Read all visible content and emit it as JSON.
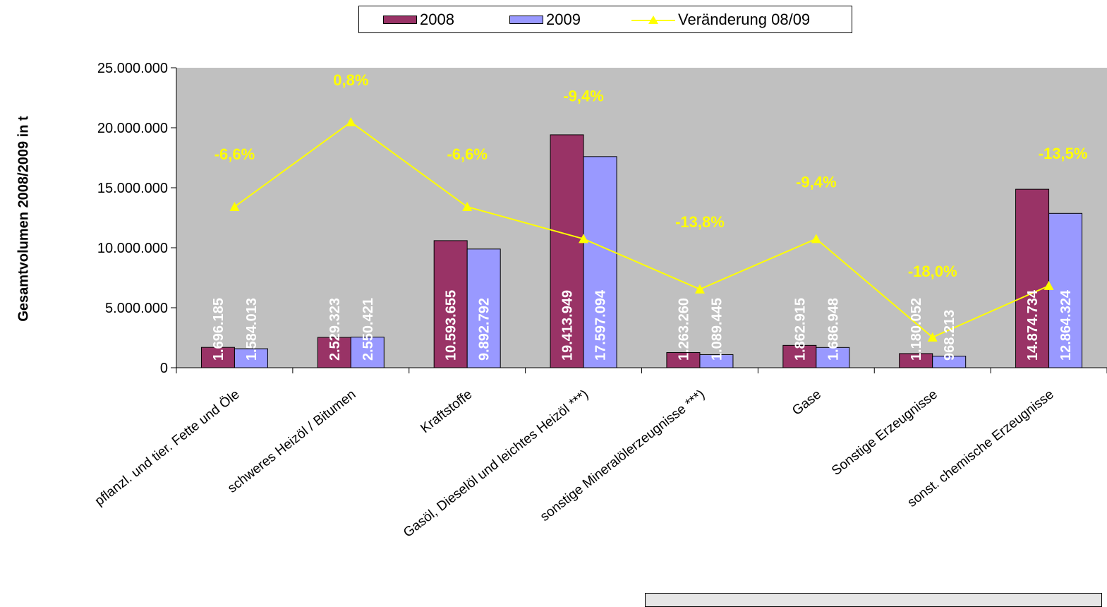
{
  "legend": {
    "series_2008": "2008",
    "series_2009": "2009",
    "change": "Veränderung 08/09"
  },
  "colors": {
    "bar_2008": "#993366",
    "bar_2009": "#9999ff",
    "change_line": "#ffff00",
    "plot_area": "#c0c0c0",
    "value_label": "#ffffff"
  },
  "chart_data": {
    "type": "bar",
    "title": "",
    "xlabel": "",
    "ylabel": "Gesamtvolumen 2008/2009 in t",
    "ylim": [
      0,
      25000000
    ],
    "yticks": [
      0,
      5000000,
      10000000,
      15000000,
      20000000,
      25000000
    ],
    "ytick_labels": [
      "0",
      "5.000.000",
      "10.000.000",
      "15.000.000",
      "20.000.000",
      "25.000.000"
    ],
    "grid": false,
    "legend_position": "top",
    "categories": [
      "pflanzl. und tier. Fette und Öle",
      "schweres Heizöl / Bitumen",
      "Kraftstoffe",
      "Gasöl, Dieselöl und leichtes Heizöl ***)",
      "sonstige Mineralölerzeugnisse ***)",
      "Gase",
      "Sonstige Erzeugnisse",
      "sonst. chemische Erzeugnisse"
    ],
    "series": [
      {
        "name": "2008",
        "values": [
          1696185,
          2529323,
          10593655,
          19413949,
          1263260,
          1862915,
          1180052,
          14874734
        ],
        "labels": [
          "1.696.185",
          "2.529.323",
          "10.593.655",
          "19.413.949",
          "1.263.260",
          "1.862.915",
          "1.180.052",
          "14.874.734"
        ]
      },
      {
        "name": "2009",
        "values": [
          1584013,
          2550421,
          9892792,
          17597094,
          1089445,
          1686948,
          968213,
          12864324
        ],
        "labels": [
          "1.584.013",
          "2.550.421",
          "9.892.792",
          "17.597.094",
          "1.089.445",
          "1.686.948",
          "968.213",
          "12.864.324"
        ]
      },
      {
        "name": "Veränderung 08/09",
        "type": "line",
        "values": [
          -6.6,
          0.8,
          -6.6,
          -9.4,
          -13.8,
          -9.4,
          -18.0,
          -13.5
        ],
        "labels": [
          "-6,6%",
          "0,8%",
          "-6,6%",
          "-9,4%",
          "-13,8%",
          "-9,4%",
          "-18,0%",
          "-13,5%"
        ]
      }
    ]
  }
}
